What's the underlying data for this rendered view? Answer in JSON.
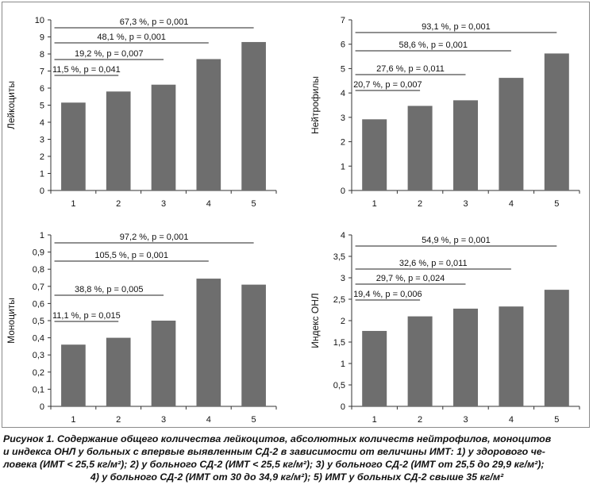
{
  "colors": {
    "bar": "#6e6e6e",
    "axis": "#333333",
    "text": "#111111"
  },
  "chart_data": [
    {
      "type": "bar",
      "ylabel": "Лейкоциты",
      "categories": [
        "1",
        "2",
        "3",
        "4",
        "5"
      ],
      "values": [
        5.15,
        5.8,
        6.2,
        7.7,
        8.7
      ],
      "ylim": [
        0,
        10
      ],
      "yticks": [
        "0",
        "1",
        "2",
        "3",
        "4",
        "5",
        "6",
        "7",
        "8",
        "9",
        "10"
      ],
      "comparisons": [
        {
          "label": "67,3 %, p = 0,001",
          "from": "1",
          "to": "5"
        },
        {
          "label": "48,1 %, p = 0,001",
          "from": "1",
          "to": "4"
        },
        {
          "label": "19,2 %, p = 0,007",
          "from": "1",
          "to": "3"
        },
        {
          "label": "11,5 %, p = 0,041",
          "from": "1",
          "to": "2"
        }
      ]
    },
    {
      "type": "bar",
      "ylabel": "Нейтрофилы",
      "categories": [
        "1",
        "2",
        "3",
        "4",
        "5"
      ],
      "values": [
        2.92,
        3.47,
        3.7,
        4.62,
        5.62
      ],
      "ylim": [
        0,
        7
      ],
      "yticks": [
        "0",
        "1",
        "2",
        "3",
        "4",
        "5",
        "6",
        "7"
      ],
      "comparisons": [
        {
          "label": "93,1 %, p = 0,001",
          "from": "1",
          "to": "5"
        },
        {
          "label": "58,6 %, p = 0,001",
          "from": "1",
          "to": "4"
        },
        {
          "label": "27,6 %, p = 0,011",
          "from": "1",
          "to": "3"
        },
        {
          "label": "20,7 %, p = 0,007",
          "from": "1",
          "to": "2"
        }
      ]
    },
    {
      "type": "bar",
      "ylabel": "Моноциты",
      "categories": [
        "1",
        "2",
        "3",
        "4",
        "5"
      ],
      "values": [
        0.36,
        0.4,
        0.5,
        0.745,
        0.71
      ],
      "ylim": [
        0,
        1
      ],
      "yticks": [
        "0",
        "0,1",
        "0,2",
        "0,3",
        "0,4",
        "0,5",
        "0,6",
        "0,7",
        "0,8",
        "0,9",
        "1"
      ],
      "comparisons": [
        {
          "label": "97,2 %, p = 0,001",
          "from": "1",
          "to": "5"
        },
        {
          "label": "105,5 %, p = 0,001",
          "from": "1",
          "to": "4"
        },
        {
          "label": "38,8 %, p = 0,005",
          "from": "1",
          "to": "3"
        },
        {
          "label": "11,1 %, p = 0,015",
          "from": "1",
          "to": "2"
        }
      ]
    },
    {
      "type": "bar",
      "ylabel": "Индекс ОНЛ",
      "categories": [
        "1",
        "2",
        "3",
        "4",
        "5"
      ],
      "values": [
        1.76,
        2.1,
        2.28,
        2.33,
        2.72
      ],
      "ylim": [
        0,
        4
      ],
      "yticks": [
        "0",
        "0,5",
        "1",
        "1,5",
        "2",
        "2,5",
        "3",
        "3,5",
        "4"
      ],
      "comparisons": [
        {
          "label": "54,9 %, p = 0,001",
          "from": "1",
          "to": "5"
        },
        {
          "label": "32,6 %, p = 0,011",
          "from": "1",
          "to": "4"
        },
        {
          "label": "29,7 %, p = 0,024",
          "from": "1",
          "to": "3"
        },
        {
          "label": "19,4 %, p = 0,006",
          "from": "1",
          "to": "2"
        }
      ]
    }
  ],
  "caption": {
    "line1": "Рисунок 1. Содержание общего количества лейкоцитов, абсолютных количеств нейтрофилов, моноцитов",
    "line2": "и индекса ОНЛ у больных с впервые выявленным СД-2 в зависимости от величины ИМТ: 1) у здорового че-",
    "line3": "ловека (ИМТ < 25,5 кг/м²); 2) у больного СД-2 (ИМТ < 25,5 кг/м²); 3) у больного СД-2 (ИМТ от 25,5 до 29,9 кг/м²);",
    "line4": "4) у больного СД-2 (ИМТ от 30 до 34,9 кг/м²); 5) ИМТ у больных СД-2 свыше 35 кг/м²"
  }
}
